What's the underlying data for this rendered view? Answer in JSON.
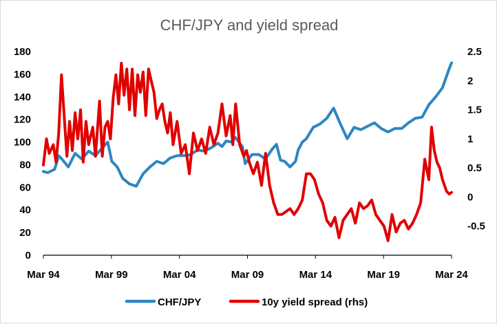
{
  "chart_data": {
    "type": "line",
    "title": "CHF/JPY and yield spread",
    "xlabel": "",
    "ylabel": "",
    "y2label": "",
    "x_ticks": [
      "Mar 94",
      "Mar 99",
      "Mar 04",
      "Mar 09",
      "Mar 14",
      "Mar 19",
      "Mar 24"
    ],
    "x_range": [
      1994.17,
      2024.17
    ],
    "ylim_left": [
      0,
      180
    ],
    "yticks_left": [
      0,
      20,
      40,
      60,
      80,
      100,
      120,
      140,
      160,
      180
    ],
    "ylim_right": [
      -1,
      2.5
    ],
    "yticks_right": [
      "-0.5",
      "0",
      "0.5",
      "1",
      "1.5",
      "2",
      "2.5"
    ],
    "legend_position": "bottom",
    "grid": false,
    "series": [
      {
        "name": "CHF/JPY",
        "axis": "left",
        "color": "#2E86C1",
        "x": [
          1994.17,
          1994.5,
          1995.0,
          1995.3,
          1995.6,
          1996.0,
          1996.5,
          1997.0,
          1997.5,
          1998.0,
          1998.5,
          1998.9,
          1999.2,
          1999.6,
          2000.0,
          2000.5,
          2001.0,
          2001.5,
          2002.0,
          2002.5,
          2003.0,
          2003.5,
          2004.0,
          2004.5,
          2005.0,
          2005.5,
          2006.0,
          2006.5,
          2007.0,
          2007.3,
          2007.6,
          2008.0,
          2008.3,
          2008.6,
          2008.8,
          2009.0,
          2009.2,
          2009.5,
          2010.0,
          2010.5,
          2011.0,
          2011.3,
          2011.6,
          2011.9,
          2012.3,
          2012.7,
          2012.9,
          2013.2,
          2013.5,
          2014.0,
          2014.5,
          2015.0,
          2015.5,
          2016.0,
          2016.5,
          2017.0,
          2017.5,
          2018.0,
          2018.5,
          2019.0,
          2019.5,
          2020.0,
          2020.5,
          2021.0,
          2021.5,
          2022.0,
          2022.5,
          2023.0,
          2023.5,
          2024.0,
          2024.17
        ],
        "values": [
          74,
          73,
          76,
          88,
          84,
          78,
          90,
          85,
          92,
          88,
          95,
          100,
          83,
          78,
          68,
          63,
          61,
          72,
          78,
          83,
          81,
          86,
          88,
          88,
          89,
          93,
          92,
          95,
          99,
          96,
          101,
          100,
          104,
          99,
          96,
          81,
          84,
          89,
          89,
          85,
          94,
          98,
          84,
          83,
          78,
          83,
          93,
          100,
          103,
          113,
          116,
          121,
          130,
          116,
          103,
          113,
          111,
          114,
          117,
          112,
          109,
          112,
          112,
          117,
          121,
          122,
          133,
          140,
          148,
          165,
          170
        ]
      },
      {
        "name": "10y yield spread (rhs)",
        "axis": "right",
        "color": "#E00000",
        "x": [
          1994.17,
          1994.4,
          1994.6,
          1994.9,
          1995.1,
          1995.3,
          1995.5,
          1995.7,
          1995.9,
          1996.1,
          1996.3,
          1996.5,
          1996.7,
          1996.9,
          1997.1,
          1997.3,
          1997.5,
          1997.8,
          1998.0,
          1998.3,
          1998.5,
          1998.7,
          1998.9,
          1999.1,
          1999.3,
          1999.5,
          1999.7,
          1999.9,
          2000.1,
          2000.3,
          2000.5,
          2000.7,
          2000.9,
          2001.1,
          2001.3,
          2001.5,
          2001.7,
          2001.9,
          2002.1,
          2002.3,
          2002.5,
          2002.7,
          2002.9,
          2003.1,
          2003.3,
          2003.5,
          2003.7,
          2004.0,
          2004.3,
          2004.6,
          2004.9,
          2005.2,
          2005.5,
          2005.8,
          2006.1,
          2006.4,
          2006.7,
          2007.0,
          2007.3,
          2007.6,
          2007.9,
          2008.1,
          2008.3,
          2008.6,
          2008.9,
          2009.1,
          2009.3,
          2009.6,
          2009.9,
          2010.2,
          2010.5,
          2010.8,
          2011.1,
          2011.4,
          2011.7,
          2012.0,
          2012.3,
          2012.6,
          2012.9,
          2013.2,
          2013.5,
          2013.8,
          2014.1,
          2014.4,
          2014.7,
          2015.0,
          2015.3,
          2015.6,
          2015.9,
          2016.2,
          2016.5,
          2016.8,
          2017.1,
          2017.4,
          2017.7,
          2018.0,
          2018.3,
          2018.6,
          2018.9,
          2019.2,
          2019.5,
          2019.8,
          2020.1,
          2020.4,
          2020.7,
          2021.0,
          2021.3,
          2021.6,
          2021.9,
          2022.2,
          2022.5,
          2022.7,
          2022.9,
          2023.1,
          2023.3,
          2023.5,
          2023.8,
          2024.0,
          2024.17
        ],
        "values": [
          0.55,
          1.0,
          0.75,
          0.9,
          0.6,
          1.1,
          2.1,
          1.4,
          0.7,
          1.3,
          0.8,
          1.45,
          1.0,
          1.5,
          0.6,
          1.3,
          0.9,
          1.2,
          0.7,
          1.65,
          0.7,
          1.2,
          1.3,
          1.0,
          1.7,
          2.1,
          1.6,
          2.3,
          1.75,
          2.2,
          1.5,
          2.2,
          1.4,
          2.1,
          1.8,
          2.15,
          1.4,
          2.2,
          2.0,
          1.8,
          1.35,
          1.5,
          1.6,
          1.3,
          1.1,
          1.45,
          0.9,
          1.3,
          0.75,
          0.9,
          0.4,
          1.1,
          0.8,
          1.0,
          0.75,
          1.2,
          0.9,
          1.1,
          1.6,
          1.05,
          1.4,
          0.9,
          1.6,
          0.9,
          0.7,
          0.8,
          0.6,
          0.4,
          0.6,
          0.2,
          0.75,
          0.2,
          -0.1,
          -0.3,
          -0.3,
          -0.25,
          -0.2,
          -0.3,
          -0.2,
          -0.05,
          0.4,
          0.4,
          0.3,
          0.05,
          -0.1,
          -0.4,
          -0.5,
          -0.35,
          -0.7,
          -0.4,
          -0.3,
          -0.2,
          -0.45,
          -0.1,
          -0.2,
          -0.15,
          -0.05,
          -0.3,
          -0.4,
          -0.5,
          -0.75,
          -0.3,
          -0.6,
          -0.45,
          -0.4,
          -0.55,
          -0.45,
          -0.3,
          -0.1,
          0.65,
          0.3,
          1.2,
          0.8,
          0.6,
          0.5,
          0.3,
          0.1,
          0.05,
          0.08
        ]
      }
    ]
  }
}
